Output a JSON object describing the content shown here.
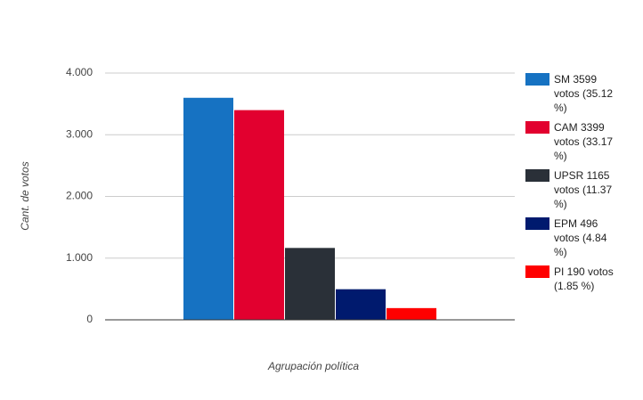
{
  "chart_data": {
    "type": "bar",
    "x_label": "Agrupación política",
    "y_label": "Cant. de votos",
    "categories": [
      null
    ],
    "series": [
      {
        "name": "SM 3599 votos (35.12 %)",
        "color": "#1672c2",
        "values": [
          3599
        ]
      },
      {
        "name": "CAM 3399 votos (33.17 %)",
        "color": "#e2002f",
        "values": [
          3399
        ]
      },
      {
        "name": "UPSR 1165 votos (11.37 %)",
        "color": "#2a3038",
        "values": [
          1165
        ]
      },
      {
        "name": "EPM 496 votos (4.84 %)",
        "color": "#001a6e",
        "values": [
          496
        ]
      },
      {
        "name": "PI 190 votos (1.85 %)",
        "color": "#ff0000",
        "values": [
          190
        ]
      }
    ],
    "ylim": [
      0,
      4000
    ],
    "yticks": [
      0,
      {
        "value": 1000,
        "label": "1.000"
      },
      {
        "value": 2000,
        "label": "2.000"
      },
      {
        "value": 3000,
        "label": "3.000"
      },
      {
        "value": 4000,
        "label": "4.000"
      }
    ],
    "grid": true,
    "legend": "right"
  }
}
